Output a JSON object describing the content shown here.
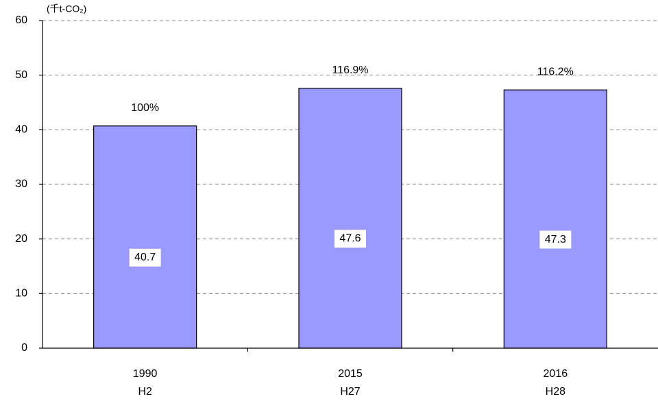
{
  "chart_data": {
    "type": "bar",
    "unit_label": "(千t-CO₂)",
    "categories": [
      "1990",
      "2015",
      "2016"
    ],
    "sub_categories": [
      "H2",
      "H27",
      "H28"
    ],
    "values": [
      40.7,
      47.6,
      47.3
    ],
    "index_labels": [
      "100%",
      "116.9%",
      "116.2%"
    ],
    "color": "#9999ff",
    "ylim": [
      0,
      60
    ],
    "yticks": [
      0,
      10,
      20,
      30,
      40,
      50,
      60
    ],
    "grid": true
  }
}
